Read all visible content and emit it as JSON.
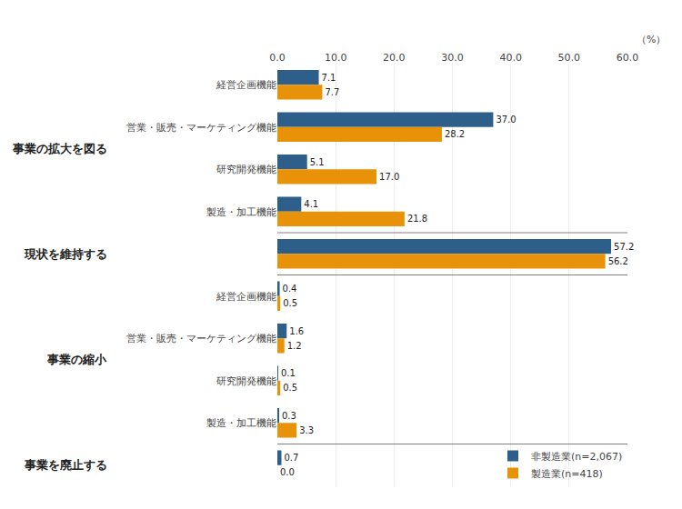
{
  "chart_data": {
    "type": "bar",
    "orientation": "horizontal",
    "categories": [
      "経営企画機能",
      "営業・販売・マーケティング機能",
      "研究開発機能",
      "製造・加工機能",
      null,
      "経営企画機能",
      "営業・販売・マーケティング機能",
      "研究開発機能",
      "製造・加工機能",
      null
    ],
    "groups": [
      "事業の拡大を図る",
      "事業の拡大を図る",
      "事業の拡大を図る",
      "事業の拡大を図る",
      "現状を維持する",
      "事業の縮小",
      "事業の縮小",
      "事業の縮小",
      "事業の縮小",
      "事業を廃止する"
    ],
    "series": [
      {
        "name": "非製造業(n=2,067)",
        "color": "#2E5F8A",
        "values": [
          7.1,
          37.0,
          5.1,
          4.1,
          57.2,
          0.4,
          1.6,
          0.1,
          0.3,
          0.7
        ],
        "value_labels": [
          "7.1",
          "37.0",
          "5.1",
          "4.1",
          "57.2",
          "0.4",
          "1.6",
          "0.1",
          "0.3",
          "0.7"
        ]
      },
      {
        "name": "製造業(n=418)",
        "color": "#E8920A",
        "values": [
          7.7,
          28.2,
          17.0,
          21.8,
          56.2,
          0.5,
          1.2,
          0.5,
          3.3,
          0.0
        ],
        "value_labels": [
          "7.7",
          "28.2",
          "17.0",
          "21.8",
          "56.2",
          "0.5",
          "1.2",
          "0.5",
          "3.3",
          "0.0"
        ]
      }
    ],
    "xlabel": "（%）",
    "xlim": [
      0,
      60
    ],
    "xticks": [
      {
        "value": 0,
        "label": "0.0"
      },
      {
        "value": 10,
        "label": "10.0"
      },
      {
        "value": 20,
        "label": "20.0"
      },
      {
        "value": 30,
        "label": "30.0"
      },
      {
        "value": 40,
        "label": "40.0"
      },
      {
        "value": 50,
        "label": "50.0"
      },
      {
        "value": 60,
        "label": "60.0"
      }
    ],
    "data_labels": true,
    "grid": true,
    "legend": "lower right"
  }
}
